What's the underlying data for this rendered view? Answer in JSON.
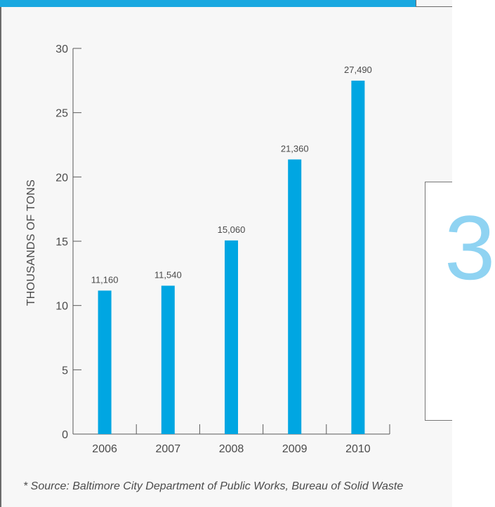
{
  "chart_data": {
    "type": "bar",
    "categories": [
      "2006",
      "2007",
      "2008",
      "2009",
      "2010"
    ],
    "values": [
      11.16,
      11.54,
      15.06,
      21.36,
      27.49
    ],
    "data_labels": [
      "11,160",
      "11,540",
      "15,060",
      "21,360",
      "27,490"
    ],
    "ylabel": "THOUSANDS OF TONS",
    "xlabel": "",
    "ylim": [
      0,
      30
    ],
    "yticks": [
      0,
      5,
      10,
      15,
      20,
      25,
      30
    ],
    "ytick_labels": [
      "0",
      "5",
      "10",
      "15",
      "20",
      "25",
      "30"
    ],
    "grid": false,
    "bar_color": "#00a6e2"
  },
  "footnote": "* Source: Baltimore City Department of Public Works, Bureau of Solid Waste",
  "colors": {
    "accent": "#1aa8e0",
    "bar": "#00a6e2",
    "text": "#4b4b4b",
    "panel": "#f7f7f7"
  },
  "side_panel": {
    "glyph": "3"
  }
}
